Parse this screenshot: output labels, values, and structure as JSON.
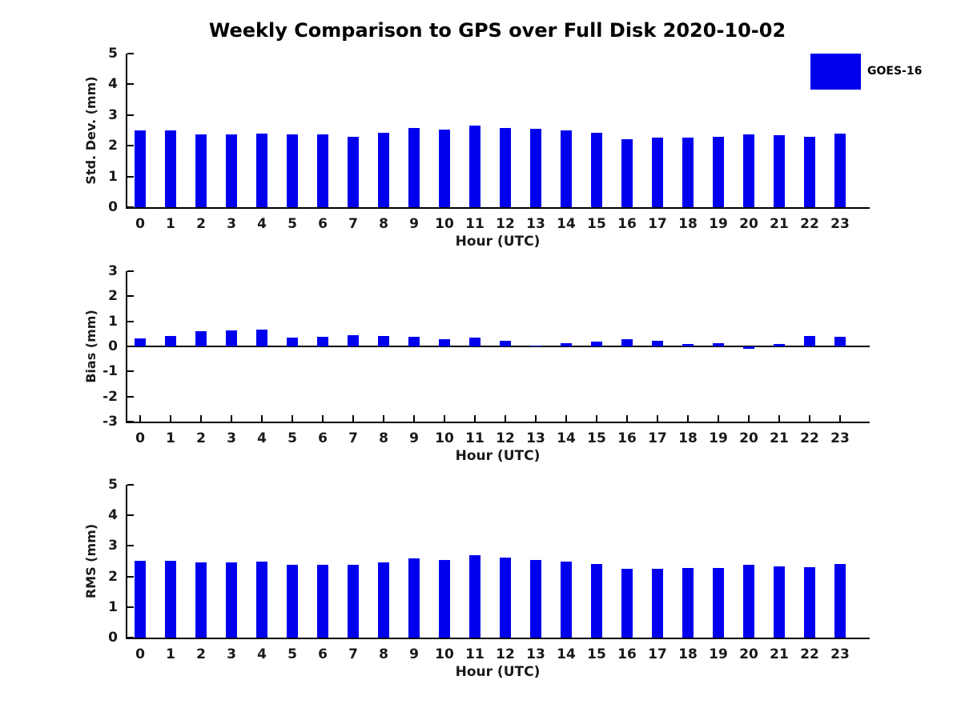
{
  "title": "Weekly Comparison to GPS over Full Disk 2020-10-02",
  "legend": {
    "label": "GOES-16",
    "swatch_color": "#0000EE"
  },
  "colors": {
    "bar": "#0000EE",
    "axis": "#000000",
    "tick_text": "#1a1a1a",
    "title_text": "#000000"
  },
  "chart_data": [
    {
      "type": "bar",
      "panel": "std-dev",
      "title": "",
      "xlabel": "Hour (UTC)",
      "ylabel": "Std. Dev. (mm)",
      "ylim": [
        0,
        5
      ],
      "yticks": [
        0,
        1,
        2,
        3,
        4,
        5
      ],
      "categories": [
        "0",
        "1",
        "2",
        "3",
        "4",
        "5",
        "6",
        "7",
        "8",
        "9",
        "10",
        "11",
        "12",
        "13",
        "14",
        "15",
        "16",
        "17",
        "18",
        "19",
        "20",
        "21",
        "22",
        "23"
      ],
      "series": [
        {
          "name": "GOES-16",
          "values": [
            2.5,
            2.51,
            2.37,
            2.37,
            2.4,
            2.37,
            2.37,
            2.3,
            2.43,
            2.57,
            2.53,
            2.66,
            2.59,
            2.54,
            2.5,
            2.42,
            2.21,
            2.27,
            2.26,
            2.3,
            2.36,
            2.34,
            2.3,
            2.4
          ]
        }
      ],
      "legend_position": "upper-right-outside",
      "grid": false
    },
    {
      "type": "bar",
      "panel": "bias",
      "title": "",
      "xlabel": "Hour (UTC)",
      "ylabel": "Bias (mm)",
      "ylim": [
        -3,
        3
      ],
      "yticks": [
        -3,
        -2,
        -1,
        0,
        1,
        2,
        3
      ],
      "categories": [
        "0",
        "1",
        "2",
        "3",
        "4",
        "5",
        "6",
        "7",
        "8",
        "9",
        "10",
        "11",
        "12",
        "13",
        "14",
        "15",
        "16",
        "17",
        "18",
        "19",
        "20",
        "21",
        "22",
        "23"
      ],
      "series": [
        {
          "name": "GOES-16",
          "values": [
            0.33,
            0.42,
            0.6,
            0.64,
            0.67,
            0.36,
            0.39,
            0.45,
            0.42,
            0.38,
            0.29,
            0.35,
            0.22,
            0.02,
            0.14,
            0.19,
            0.28,
            0.21,
            0.1,
            0.14,
            -0.11,
            0.09,
            0.4,
            0.39
          ]
        }
      ],
      "legend_position": "none",
      "grid": false
    },
    {
      "type": "bar",
      "panel": "rms",
      "title": "",
      "xlabel": "Hour (UTC)",
      "ylabel": "RMS (mm)",
      "ylim": [
        0,
        5
      ],
      "yticks": [
        0,
        1,
        2,
        3,
        4,
        5
      ],
      "categories": [
        "0",
        "1",
        "2",
        "3",
        "4",
        "5",
        "6",
        "7",
        "8",
        "9",
        "10",
        "11",
        "12",
        "13",
        "14",
        "15",
        "16",
        "17",
        "18",
        "19",
        "20",
        "21",
        "22",
        "23"
      ],
      "series": [
        {
          "name": "GOES-16",
          "values": [
            2.52,
            2.52,
            2.45,
            2.45,
            2.5,
            2.39,
            2.39,
            2.39,
            2.45,
            2.58,
            2.54,
            2.69,
            2.63,
            2.54,
            2.5,
            2.42,
            2.25,
            2.24,
            2.28,
            2.27,
            2.39,
            2.33,
            2.3,
            2.42
          ]
        }
      ],
      "legend_position": "none",
      "grid": false
    }
  ]
}
